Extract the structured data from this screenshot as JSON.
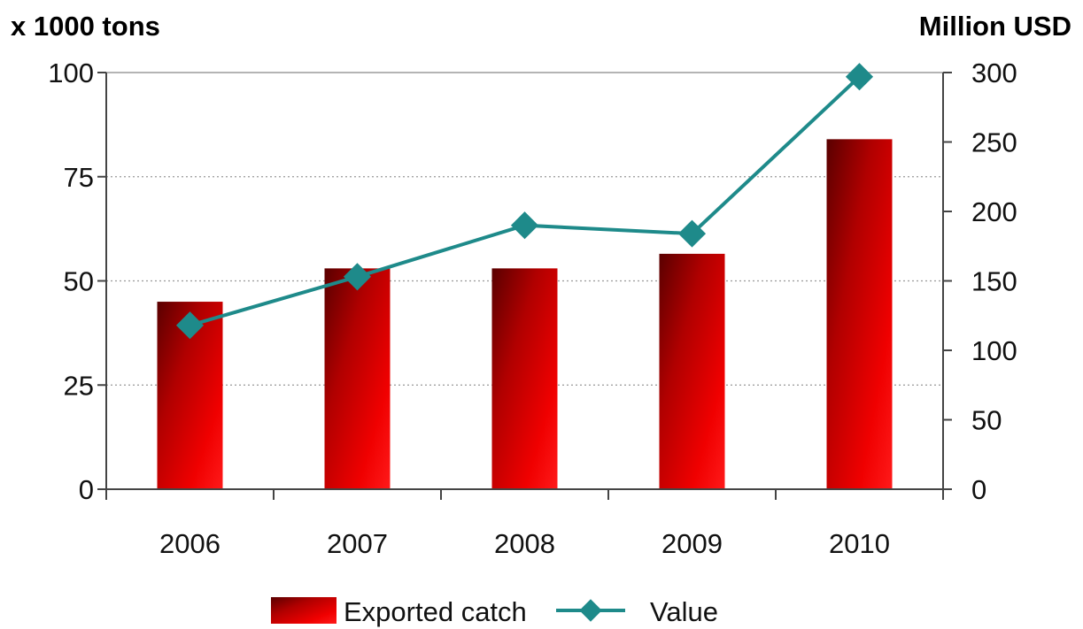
{
  "chart_data": {
    "type": "bar",
    "categories": [
      "2006",
      "2007",
      "2008",
      "2009",
      "2010"
    ],
    "series": [
      {
        "name": "Exported catch",
        "type": "bar",
        "axis": "left",
        "values": [
          45,
          53,
          53,
          56.5,
          84
        ],
        "color": "#e00000"
      },
      {
        "name": "Value",
        "type": "line",
        "axis": "right",
        "values": [
          118,
          153,
          190,
          184,
          297
        ],
        "color": "#1e8a8a"
      }
    ],
    "ylabel_left": "x 1000 tons",
    "ylabel_right": "Million USD",
    "ylim_left": [
      0,
      100
    ],
    "ylim_right": [
      0,
      300
    ],
    "yticks_left": [
      "0",
      "25",
      "50",
      "75",
      "100"
    ],
    "yticks_right": [
      "0",
      "50",
      "100",
      "150",
      "200",
      "250",
      "300"
    ],
    "grid": "horizontal dotted",
    "legend": "bottom"
  }
}
